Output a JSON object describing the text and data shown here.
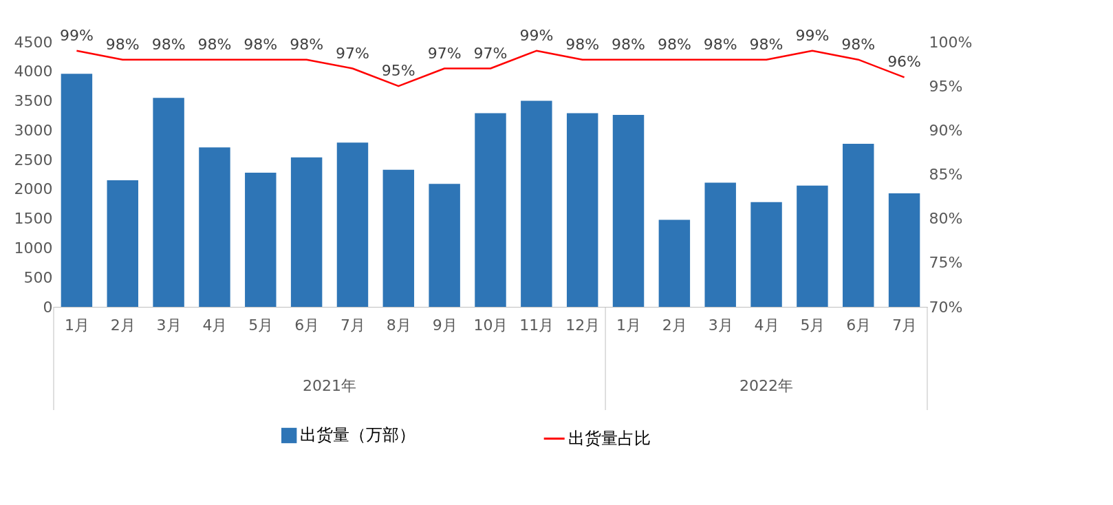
{
  "chart_data": {
    "type": "bar",
    "categories": [
      "1月",
      "2月",
      "3月",
      "4月",
      "5月",
      "6月",
      "7月",
      "8月",
      "9月",
      "10月",
      "11月",
      "12月",
      "1月",
      "2月",
      "3月",
      "4月",
      "5月",
      "6月",
      "7月"
    ],
    "series": [
      {
        "name": "出货量（万部）",
        "color": "#2e75b6",
        "values": [
          3960,
          2150,
          3550,
          2710,
          2280,
          2540,
          2790,
          2330,
          2090,
          3290,
          3500,
          3290,
          3260,
          1480,
          2110,
          1780,
          2060,
          2770,
          1930
        ]
      },
      {
        "name": "出货量占比",
        "type": "line",
        "axis": "y2",
        "color": "#ff0000",
        "values": [
          99,
          98,
          98,
          98,
          98,
          98,
          97,
          95,
          97,
          97,
          99,
          98,
          98,
          98,
          98,
          98,
          99,
          98,
          96
        ],
        "value_labels": [
          "99%",
          "98%",
          "98%",
          "98%",
          "98%",
          "98%",
          "97%",
          "95%",
          "97%",
          "97%",
          "99%",
          "98%",
          "98%",
          "98%",
          "98%",
          "98%",
          "99%",
          "98%",
          "96%"
        ]
      }
    ],
    "ylim": [
      0,
      4500
    ],
    "yticks": [
      0,
      500,
      1000,
      1500,
      2000,
      2500,
      3000,
      3500,
      4000,
      4500
    ],
    "y2lim": [
      70,
      100
    ],
    "y2ticks": [
      {
        "value": 70,
        "label": "70%"
      },
      {
        "value": 75,
        "label": "75%"
      },
      {
        "value": 80,
        "label": "80%"
      },
      {
        "value": 85,
        "label": "85%"
      },
      {
        "value": 90,
        "label": "90%"
      },
      {
        "value": 95,
        "label": "95%"
      },
      {
        "value": 100,
        "label": "100%"
      }
    ],
    "annotations": [
      "2021年",
      "2022年"
    ],
    "legend": "bottom",
    "grid": false,
    "marker": "none",
    "line_style": "solid"
  }
}
